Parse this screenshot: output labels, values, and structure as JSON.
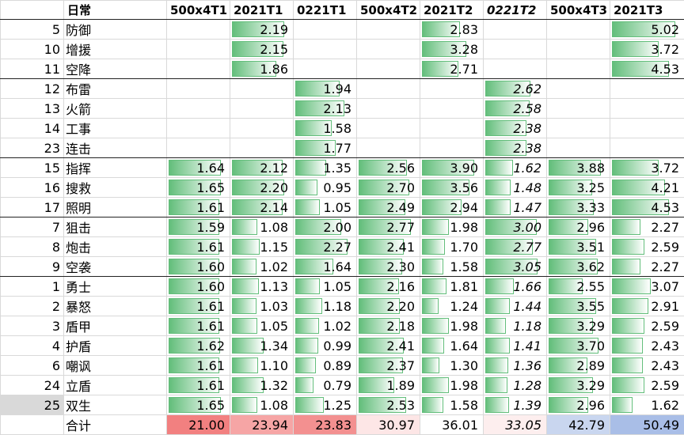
{
  "table": {
    "header": [
      "日常",
      "500x4T1",
      "2021T1",
      "0221T1",
      "500x4T2",
      "2021T2",
      "0221T2",
      "500x4T3",
      "2021T3"
    ],
    "rows": [
      {
        "id": 5,
        "name": "防御",
        "cells": [
          null,
          "2.19",
          null,
          null,
          "2.83",
          null,
          null,
          "5.02"
        ]
      },
      {
        "id": 10,
        "name": "增援",
        "cells": [
          null,
          "2.15",
          null,
          null,
          "3.28",
          null,
          null,
          "3.72"
        ]
      },
      {
        "id": 11,
        "name": "空降",
        "cells": [
          null,
          "1.86",
          null,
          null,
          "2.71",
          null,
          null,
          "4.53"
        ]
      },
      {
        "id": 12,
        "name": "布雷",
        "cells": [
          null,
          null,
          "1.94",
          null,
          null,
          "2.62",
          null,
          null
        ]
      },
      {
        "id": 13,
        "name": "火箭",
        "cells": [
          null,
          null,
          "2.13",
          null,
          null,
          "2.58",
          null,
          null
        ]
      },
      {
        "id": 14,
        "name": "工事",
        "cells": [
          null,
          null,
          "1.58",
          null,
          null,
          "2.38",
          null,
          null
        ]
      },
      {
        "id": 23,
        "name": "连击",
        "cells": [
          null,
          null,
          "1.77",
          null,
          null,
          "2.38",
          null,
          null
        ]
      },
      {
        "id": 15,
        "name": "指挥",
        "cells": [
          "1.64",
          "2.12",
          "1.35",
          "2.56",
          "3.90",
          "1.62",
          "3.88",
          "3.72"
        ]
      },
      {
        "id": 16,
        "name": "搜救",
        "cells": [
          "1.65",
          "2.20",
          "0.95",
          "2.70",
          "3.56",
          "1.48",
          "3.25",
          "4.21"
        ]
      },
      {
        "id": 17,
        "name": "照明",
        "cells": [
          "1.61",
          "2.14",
          "1.05",
          "2.49",
          "2.94",
          "1.47",
          "3.33",
          "4.53"
        ]
      },
      {
        "id": 7,
        "name": "狙击",
        "cells": [
          "1.59",
          "1.08",
          "2.00",
          "2.77",
          "1.98",
          "3.00",
          "2.96",
          "2.27"
        ]
      },
      {
        "id": 8,
        "name": "炮击",
        "cells": [
          "1.61",
          "1.15",
          "2.27",
          "2.41",
          "1.70",
          "2.77",
          "3.51",
          "2.59"
        ]
      },
      {
        "id": 9,
        "name": "空袭",
        "cells": [
          "1.60",
          "1.02",
          "1.64",
          "2.30",
          "1.58",
          "3.05",
          "3.62",
          "2.27"
        ]
      },
      {
        "id": 1,
        "name": "勇士",
        "cells": [
          "1.60",
          "1.13",
          "1.05",
          "2.16",
          "1.81",
          "1.66",
          "2.55",
          "3.07"
        ]
      },
      {
        "id": 2,
        "name": "暴怒",
        "cells": [
          "1.61",
          "1.03",
          "1.18",
          "2.20",
          "1.24",
          "1.44",
          "3.55",
          "2.91"
        ]
      },
      {
        "id": 3,
        "name": "盾甲",
        "cells": [
          "1.61",
          "1.05",
          "1.02",
          "2.18",
          "1.98",
          "1.18",
          "3.29",
          "2.59"
        ]
      },
      {
        "id": 4,
        "name": "护盾",
        "cells": [
          "1.62",
          "1.34",
          "0.99",
          "2.41",
          "1.64",
          "1.41",
          "3.70",
          "2.43"
        ]
      },
      {
        "id": 6,
        "name": "嘲讽",
        "cells": [
          "1.61",
          "1.10",
          "0.89",
          "2.37",
          "1.30",
          "1.36",
          "2.89",
          "2.43"
        ]
      },
      {
        "id": 24,
        "name": "立盾",
        "cells": [
          "1.61",
          "1.32",
          "0.79",
          "1.89",
          "1.98",
          "1.28",
          "3.29",
          "2.59"
        ]
      },
      {
        "id": 25,
        "name": "双生",
        "cells": [
          "1.65",
          "1.08",
          "1.25",
          "2.53",
          "1.58",
          "1.39",
          "2.96",
          "1.62"
        ]
      }
    ],
    "total": {
      "label": "合计",
      "cells": [
        "21.00",
        "23.94",
        "23.83",
        "30.97",
        "36.01",
        "33.05",
        "42.79",
        "50.49"
      ]
    }
  }
}
